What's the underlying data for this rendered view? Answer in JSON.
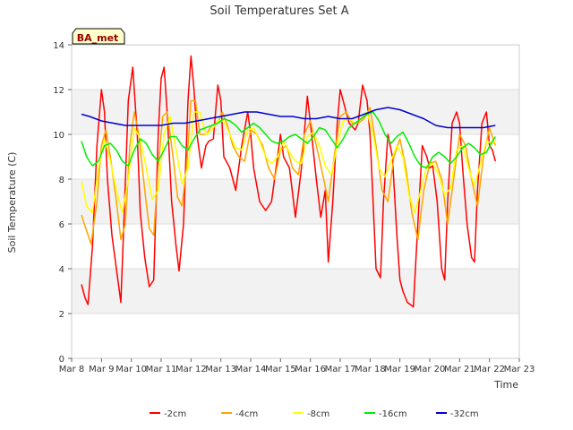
{
  "chart_data": {
    "type": "line",
    "title": "Soil Temperatures Set A",
    "xlabel": "Time",
    "ylabel": "Soil Temperature (C)",
    "badge": "BA_met",
    "xlim": [
      8,
      23
    ],
    "ylim": [
      0,
      14
    ],
    "x_ticks": [
      8,
      9,
      10,
      11,
      12,
      13,
      14,
      15,
      16,
      17,
      18,
      19,
      20,
      21,
      22,
      23
    ],
    "x_tick_labels": [
      "Mar 8",
      "Mar 9",
      "Mar 10",
      "Mar 11",
      "Mar 12",
      "Mar 13",
      "Mar 14",
      "Mar 15",
      "Mar 16",
      "Mar 17",
      "Mar 18",
      "Mar 19",
      "Mar 20",
      "Mar 21",
      "Mar 22",
      "Mar 23"
    ],
    "y_ticks": [
      0,
      2,
      4,
      6,
      8,
      10,
      12,
      14
    ],
    "y_tick_labels": [
      "0",
      "2",
      "4",
      "6",
      "8",
      "10",
      "12",
      "14"
    ],
    "legend_position": "bottom",
    "grid": true,
    "series": [
      {
        "name": "-2cm",
        "color": "#ff0000",
        "x": [
          8.33,
          8.45,
          8.55,
          8.7,
          8.85,
          9.0,
          9.1,
          9.2,
          9.35,
          9.5,
          9.65,
          9.75,
          9.9,
          10.05,
          10.2,
          10.3,
          10.45,
          10.6,
          10.75,
          10.9,
          11.0,
          11.1,
          11.2,
          11.35,
          11.5,
          11.6,
          11.75,
          11.9,
          12.0,
          12.1,
          12.2,
          12.35,
          12.5,
          12.6,
          12.75,
          12.9,
          13.0,
          13.1,
          13.3,
          13.5,
          13.7,
          13.9,
          14.0,
          14.1,
          14.3,
          14.5,
          14.7,
          14.9,
          15.0,
          15.1,
          15.3,
          15.5,
          15.7,
          15.9,
          16.0,
          16.2,
          16.35,
          16.5,
          16.6,
          16.75,
          16.9,
          17.0,
          17.1,
          17.3,
          17.5,
          17.6,
          17.75,
          17.9,
          18.0,
          18.1,
          18.2,
          18.35,
          18.45,
          18.6,
          18.75,
          18.9,
          19.0,
          19.1,
          19.25,
          19.45,
          19.6,
          19.75,
          19.9,
          20.0,
          20.1,
          20.25,
          20.4,
          20.5,
          20.6,
          20.75,
          20.9,
          21.0,
          21.1,
          21.25,
          21.4,
          21.5,
          21.6,
          21.75,
          21.9,
          22.0,
          22.1,
          22.2
        ],
        "y": [
          3.3,
          2.7,
          2.4,
          5.0,
          9.5,
          12.0,
          11.0,
          8.0,
          5.5,
          4.0,
          2.5,
          6.0,
          11.5,
          13.0,
          10.0,
          6.5,
          4.5,
          3.2,
          3.5,
          10.0,
          12.5,
          13.0,
          11.0,
          7.0,
          5.0,
          3.9,
          6.0,
          11.5,
          13.5,
          12.0,
          10.0,
          8.5,
          9.5,
          9.7,
          9.8,
          12.2,
          11.5,
          9.0,
          8.5,
          7.5,
          9.5,
          11.0,
          10.0,
          8.5,
          7.0,
          6.6,
          7.0,
          9.0,
          10.0,
          9.0,
          8.5,
          6.3,
          8.5,
          11.7,
          10.5,
          8.0,
          6.3,
          7.5,
          4.3,
          7.0,
          10.5,
          12.0,
          11.5,
          10.5,
          10.2,
          10.5,
          12.2,
          11.5,
          10.0,
          7.0,
          4.0,
          3.6,
          7.0,
          10.0,
          9.0,
          5.5,
          3.5,
          3.0,
          2.5,
          2.3,
          6.0,
          9.5,
          9.0,
          8.5,
          8.6,
          7.0,
          4.0,
          3.5,
          7.0,
          10.5,
          11.0,
          10.5,
          8.5,
          6.0,
          4.5,
          4.3,
          7.5,
          10.5,
          11.0,
          9.5,
          9.3,
          8.8
        ]
      },
      {
        "name": "-4cm",
        "color": "#ffa500",
        "x": [
          8.33,
          8.5,
          8.65,
          8.85,
          9.0,
          9.15,
          9.3,
          9.5,
          9.65,
          9.8,
          9.95,
          10.1,
          10.25,
          10.45,
          10.6,
          10.75,
          10.9,
          11.05,
          11.2,
          11.4,
          11.55,
          11.7,
          11.85,
          12.0,
          12.15,
          12.3,
          12.5,
          12.7,
          12.9,
          13.05,
          13.2,
          13.4,
          13.6,
          13.8,
          14.0,
          14.2,
          14.4,
          14.6,
          14.8,
          15.0,
          15.2,
          15.4,
          15.6,
          15.8,
          16.0,
          16.2,
          16.4,
          16.6,
          16.8,
          17.0,
          17.2,
          17.4,
          17.6,
          17.8,
          18.0,
          18.2,
          18.4,
          18.6,
          18.8,
          19.0,
          19.2,
          19.4,
          19.6,
          19.8,
          20.0,
          20.2,
          20.4,
          20.6,
          20.8,
          21.0,
          21.2,
          21.4,
          21.6,
          21.8,
          22.0,
          22.2
        ],
        "y": [
          6.4,
          5.7,
          5.1,
          7.0,
          9.5,
          10.2,
          9.0,
          7.0,
          5.3,
          6.0,
          9.5,
          11.0,
          10.0,
          7.5,
          5.8,
          5.5,
          8.5,
          10.8,
          11.0,
          9.0,
          7.2,
          6.8,
          8.5,
          11.5,
          11.5,
          10.0,
          10.0,
          10.4,
          10.5,
          11.0,
          10.5,
          9.5,
          9.0,
          8.8,
          10.2,
          10.0,
          9.5,
          8.5,
          8.0,
          9.3,
          9.5,
          8.5,
          8.2,
          10.0,
          10.6,
          9.5,
          8.3,
          7.0,
          9.0,
          10.8,
          11.0,
          10.5,
          10.5,
          10.7,
          11.2,
          9.5,
          7.5,
          7.0,
          9.0,
          9.8,
          8.5,
          6.5,
          5.3,
          7.5,
          8.7,
          8.8,
          8.0,
          6.0,
          8.0,
          10.0,
          9.5,
          8.0,
          6.8,
          9.0,
          10.3,
          9.5
        ]
      },
      {
        "name": "-8cm",
        "color": "#ffff00",
        "x": [
          8.33,
          8.5,
          8.7,
          8.9,
          9.1,
          9.3,
          9.5,
          9.7,
          9.9,
          10.1,
          10.3,
          10.5,
          10.7,
          10.9,
          11.1,
          11.3,
          11.5,
          11.7,
          11.9,
          12.1,
          12.3,
          12.5,
          12.7,
          12.9,
          13.1,
          13.3,
          13.5,
          13.7,
          13.9,
          14.1,
          14.3,
          14.5,
          14.7,
          14.9,
          15.1,
          15.3,
          15.5,
          15.7,
          15.9,
          16.1,
          16.3,
          16.5,
          16.7,
          16.9,
          17.1,
          17.3,
          17.5,
          17.7,
          17.9,
          18.1,
          18.3,
          18.5,
          18.7,
          18.9,
          19.1,
          19.3,
          19.5,
          19.7,
          19.9,
          20.1,
          20.3,
          20.5,
          20.7,
          20.9,
          21.1,
          21.3,
          21.5,
          21.7,
          21.9,
          22.1,
          22.2
        ],
        "y": [
          7.9,
          6.8,
          6.5,
          8.5,
          9.8,
          8.8,
          7.5,
          6.5,
          8.0,
          10.3,
          9.8,
          8.5,
          7.1,
          7.5,
          10.0,
          10.8,
          9.3,
          7.8,
          8.5,
          11.0,
          11.0,
          10.0,
          10.2,
          10.6,
          10.6,
          10.0,
          9.4,
          9.3,
          10.2,
          10.3,
          9.7,
          9.0,
          8.7,
          9.0,
          9.7,
          9.2,
          8.8,
          8.7,
          9.9,
          10.1,
          9.5,
          8.6,
          8.2,
          9.5,
          10.6,
          10.7,
          10.5,
          10.7,
          11.0,
          10.0,
          8.5,
          8.1,
          8.8,
          9.5,
          9.0,
          7.3,
          6.5,
          7.5,
          8.6,
          8.7,
          8.2,
          7.3,
          7.6,
          9.3,
          9.5,
          8.5,
          7.7,
          8.7,
          9.7,
          9.6,
          9.7
        ]
      },
      {
        "name": "-16cm",
        "color": "#00ee00",
        "x": [
          8.33,
          8.5,
          8.7,
          8.9,
          9.1,
          9.3,
          9.5,
          9.7,
          9.9,
          10.1,
          10.3,
          10.5,
          10.7,
          10.9,
          11.1,
          11.3,
          11.5,
          11.7,
          11.9,
          12.1,
          12.3,
          12.5,
          12.7,
          12.9,
          13.1,
          13.3,
          13.5,
          13.7,
          13.9,
          14.1,
          14.3,
          14.5,
          14.7,
          14.9,
          15.1,
          15.3,
          15.5,
          15.7,
          15.9,
          16.1,
          16.3,
          16.5,
          16.7,
          16.9,
          17.1,
          17.3,
          17.5,
          17.7,
          17.9,
          18.1,
          18.3,
          18.5,
          18.7,
          18.9,
          19.1,
          19.3,
          19.5,
          19.7,
          19.9,
          20.1,
          20.3,
          20.5,
          20.7,
          20.9,
          21.1,
          21.3,
          21.5,
          21.7,
          21.9,
          22.1,
          22.2
        ],
        "y": [
          9.7,
          9.0,
          8.6,
          8.8,
          9.5,
          9.6,
          9.3,
          8.8,
          8.6,
          9.3,
          9.8,
          9.6,
          9.1,
          8.8,
          9.3,
          9.9,
          9.9,
          9.5,
          9.3,
          9.8,
          10.2,
          10.3,
          10.4,
          10.5,
          10.7,
          10.6,
          10.4,
          10.1,
          10.3,
          10.5,
          10.3,
          10.0,
          9.7,
          9.6,
          9.7,
          9.9,
          10.0,
          9.8,
          9.6,
          9.9,
          10.3,
          10.2,
          9.8,
          9.4,
          9.8,
          10.3,
          10.5,
          10.7,
          10.9,
          11.0,
          10.6,
          10.0,
          9.6,
          9.9,
          10.1,
          9.6,
          9.0,
          8.6,
          8.5,
          9.0,
          9.2,
          9.0,
          8.7,
          9.0,
          9.4,
          9.6,
          9.4,
          9.1,
          9.2,
          9.7,
          9.9
        ]
      },
      {
        "name": "-32cm",
        "color": "#0000cc",
        "x": [
          8.33,
          8.6,
          9.0,
          9.4,
          9.8,
          10.2,
          10.6,
          11.0,
          11.4,
          11.8,
          12.2,
          12.6,
          13.0,
          13.4,
          13.8,
          14.2,
          14.6,
          15.0,
          15.4,
          15.8,
          16.2,
          16.6,
          17.0,
          17.4,
          17.8,
          18.2,
          18.6,
          19.0,
          19.4,
          19.8,
          20.2,
          20.6,
          21.0,
          21.4,
          21.8,
          22.2
        ],
        "y": [
          10.9,
          10.8,
          10.6,
          10.5,
          10.4,
          10.4,
          10.4,
          10.4,
          10.5,
          10.5,
          10.6,
          10.7,
          10.8,
          10.9,
          11.0,
          11.0,
          10.9,
          10.8,
          10.8,
          10.7,
          10.7,
          10.8,
          10.7,
          10.7,
          10.9,
          11.1,
          11.2,
          11.1,
          10.9,
          10.7,
          10.4,
          10.3,
          10.3,
          10.3,
          10.3,
          10.4
        ]
      }
    ]
  }
}
